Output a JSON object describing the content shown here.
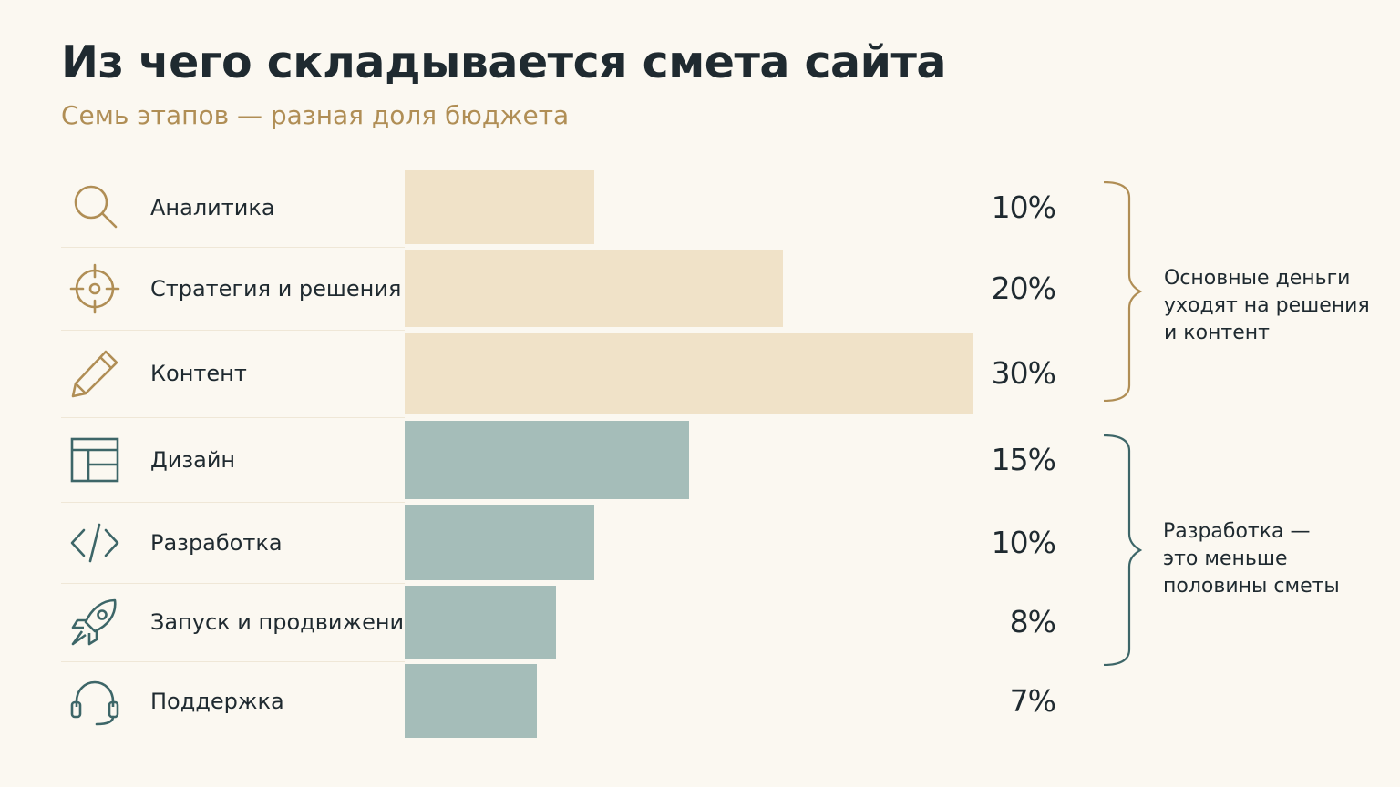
{
  "header": {
    "title": "Из чего складывается смета сайта",
    "subtitle": "Семь этапов — разная доля бюджета"
  },
  "colors": {
    "background": "#fbf8f1",
    "warm_bar": "#f0e2c8",
    "cool_bar": "#a5bdb9",
    "warm_accent": "#b08e55",
    "cool_accent": "#3d6668",
    "text": "#1f2a30"
  },
  "chart_data": {
    "type": "bar",
    "orientation": "horizontal",
    "categories": [
      "Аналитика",
      "Стратегия и решения",
      "Контент",
      "Дизайн",
      "Разработка",
      "Запуск и продвижение",
      "Поддержка"
    ],
    "values": [
      10,
      20,
      30,
      15,
      10,
      8,
      7
    ],
    "value_labels": [
      "10%",
      "20%",
      "30%",
      "15%",
      "10%",
      "8%",
      "7%"
    ],
    "unit": "%",
    "icons": [
      "search-icon",
      "target-icon",
      "pencil-icon",
      "layout-icon",
      "code-icon",
      "rocket-icon",
      "headset-icon"
    ],
    "groups": [
      {
        "categories": [
          "Аналитика",
          "Стратегия и решения",
          "Контент"
        ],
        "color": "#f0e2c8",
        "note_lines": [
          "Основные деньги",
          "уходят на решения",
          "и контент"
        ]
      },
      {
        "categories": [
          "Дизайн",
          "Разработка",
          "Запуск и продвижение"
        ],
        "color": "#a5bdb9",
        "note_lines": [
          "Разработка —",
          "это меньше",
          "половины сметы"
        ]
      }
    ],
    "title": "Из чего складывается смета сайта",
    "subtitle": "Семь этапов — разная доля бюджета",
    "grid": false,
    "legend": "none"
  }
}
